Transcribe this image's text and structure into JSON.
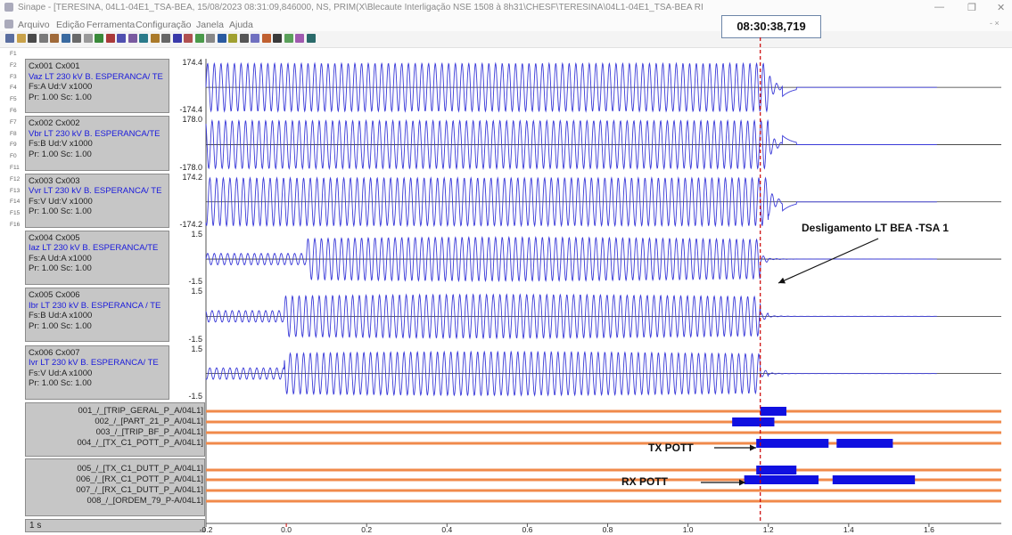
{
  "window": {
    "title": "Sinape - [TERESINA, 04L1-04E1_TSA-BEA, 15/08/2023 08:31:09,846000, NS, PRIM(X\\Blecaute Interligação NSE 1508 à 8h31\\CHESF\\TERESINA\\04L1-04E1_TSA-BEA RI"
  },
  "menu": [
    "Arquivo",
    "Edição",
    "Ferramenta",
    "Configuração",
    "Janela",
    "Ajuda"
  ],
  "cursor_time": "08:30:38,719",
  "fkeys": [
    "F1",
    "F2",
    "F3",
    "F4",
    "F5",
    "F6",
    "F7",
    "F8",
    "F9",
    "F0",
    "F11",
    "F12",
    "F13",
    "F14",
    "F15",
    "F16"
  ],
  "analog_channels": [
    {
      "id": "Cx001 Cx001",
      "name": "Vaz LT 230 kV B. ESPERANCA/ TE",
      "phase": "Fs:A Ud:V x1000",
      "scale": "Pr: 1.00 Sc: 1.00",
      "ymax": "174.4",
      "ymin": "-174.4"
    },
    {
      "id": "Cx002 Cx002",
      "name": "Vbr LT 230 kV B. ESPERANCA/TE",
      "phase": "Fs:B Ud:V x1000",
      "scale": "Pr: 1.00 Sc: 1.00",
      "ymax": "178.0",
      "ymin": "-178.0"
    },
    {
      "id": "Cx003 Cx003",
      "name": "Vvr LT 230 kV B. ESPERANCA/ TE",
      "phase": "Fs:V Ud:V x1000",
      "scale": "Pr: 1.00 Sc: 1.00",
      "ymax": "174.2",
      "ymin": "-174.2"
    },
    {
      "id": "Cx004 Cx005",
      "name": "Iaz LT 230 kV B. ESPERANCA/TE",
      "phase": "Fs:A Ud:A x1000",
      "scale": "Pr: 1.00 Sc: 1.00",
      "ymax": "1.5",
      "ymin": "-1.5"
    },
    {
      "id": "Cx005 Cx006",
      "name": "Ibr LT 230 kV B. ESPERANCA / TE",
      "phase": "Fs:B Ud:A x1000",
      "scale": "Pr: 1.00 Sc: 1.00",
      "ymax": "1.5",
      "ymin": "-1.5"
    },
    {
      "id": "Cx006 Cx007",
      "name": "Ivr LT 230 kV B. ESPERANCA/ TE",
      "phase": "Fs:V Ud:A x1000",
      "scale": "Pr: 1.00 Sc: 1.00",
      "ymax": "1.5",
      "ymin": "-1.5"
    }
  ],
  "digital_channels": [
    "001_/_[TRIP_GERAL_P_A/04L1]",
    "002_/_[PART_21_P_A/04L1]",
    "003_/_[TRIP_BF_P_A/04L1]",
    "004_/_[TX_C1_POTT_P_A/04L1]",
    "005_/_[TX_C1_DUTT_P_A/04L1]",
    "006_/_[RX_C1_POTT_P_A/04L1]",
    "007_/_[RX_C1_DUTT_P_A/04L1]",
    "008_/_[ORDEM_79_P-A/04L1]"
  ],
  "digital_active": [
    [
      [
        1.18,
        1.245
      ]
    ],
    [
      [
        1.11,
        1.215
      ]
    ],
    [],
    [
      [
        1.17,
        1.35
      ],
      [
        1.37,
        1.51
      ]
    ],
    [
      [
        1.17,
        1.27
      ]
    ],
    [
      [
        1.14,
        1.325
      ],
      [
        1.36,
        1.565
      ]
    ],
    [],
    []
  ],
  "time_scale_label": "1 s",
  "x_axis": {
    "min": -0.2,
    "max": 1.78,
    "ticks": [
      "-0.2",
      "0.0",
      "0.2",
      "0.4",
      "0.6",
      "0.8",
      "1.0",
      "1.2",
      "1.4",
      "1.6"
    ],
    "tick_values": [
      -0.2,
      0,
      0.2,
      0.4,
      0.6,
      0.8,
      1.0,
      1.2,
      1.4,
      1.6
    ]
  },
  "cursor_x": 1.18,
  "annotations": {
    "trip": "Desligamento LT BEA -TSA 1",
    "tx": "TX POTT",
    "rx": "RX POTT"
  },
  "colors": {
    "wave": "#3a3ad8",
    "digital_line": "#f08a4b",
    "digital_bar": "#1010e0",
    "cursor": "#cc0000",
    "zero_line": "#303030"
  }
}
